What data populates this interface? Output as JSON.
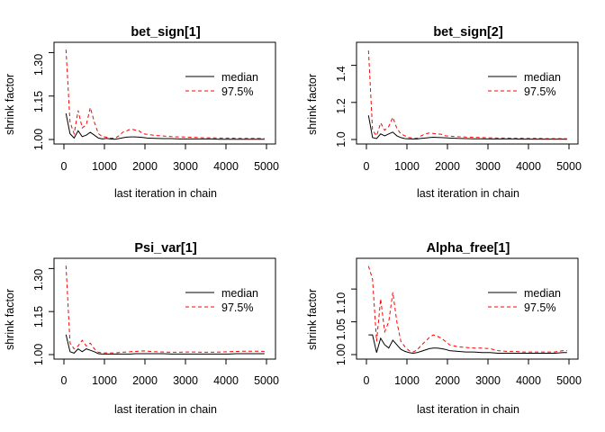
{
  "chart_data": [
    {
      "type": "line",
      "title": "bet_sign[1]",
      "xlabel": "last iteration in chain",
      "ylabel": "shrink factor",
      "xlim": [
        0,
        5000
      ],
      "ylim": [
        1.0,
        1.32
      ],
      "xticks": [
        "0",
        "1000",
        "2000",
        "3000",
        "4000",
        "5000"
      ],
      "yticks": [
        "1.00",
        "1.15",
        "1.30"
      ],
      "legend_position": "top-right",
      "grid": false,
      "series": [
        {
          "name": "median",
          "color": "#000000",
          "style": "solid",
          "x": [
            50,
            150,
            250,
            350,
            450,
            550,
            650,
            750,
            850,
            950,
            1050,
            1150,
            1250,
            1350,
            1450,
            1550,
            1650,
            1750,
            1850,
            1950,
            2050,
            2250,
            2450,
            2650,
            2850,
            3050,
            3250,
            3450,
            3650,
            3850,
            4050,
            4250,
            4450,
            4650,
            4850,
            4950
          ],
          "y": [
            1.09,
            1.02,
            1.005,
            1.03,
            1.01,
            1.015,
            1.025,
            1.015,
            1.005,
            1.002,
            1.004,
            1.002,
            1.001,
            1.003,
            1.006,
            1.008,
            1.009,
            1.009,
            1.008,
            1.007,
            1.005,
            1.004,
            1.003,
            1.003,
            1.002,
            1.002,
            1.002,
            1.002,
            1.002,
            1.001,
            1.001,
            1.001,
            1.001,
            1.001,
            1.001,
            1.001
          ]
        },
        {
          "name": "97.5%",
          "color": "#ff0000",
          "style": "dashed",
          "x": [
            50,
            150,
            250,
            350,
            450,
            550,
            650,
            750,
            850,
            950,
            1050,
            1150,
            1250,
            1350,
            1450,
            1550,
            1650,
            1750,
            1850,
            1950,
            2050,
            2250,
            2450,
            2650,
            2850,
            3050,
            3250,
            3450,
            3650,
            3850,
            4050,
            4250,
            4450,
            4650,
            4850,
            4950
          ],
          "y": [
            1.31,
            1.06,
            1.02,
            1.1,
            1.04,
            1.05,
            1.11,
            1.06,
            1.02,
            1.01,
            1.008,
            1.005,
            1.004,
            1.012,
            1.025,
            1.03,
            1.036,
            1.033,
            1.03,
            1.02,
            1.018,
            1.014,
            1.012,
            1.01,
            1.009,
            1.008,
            1.007,
            1.006,
            1.006,
            1.005,
            1.005,
            1.004,
            1.004,
            1.004,
            1.004,
            1.003
          ]
        }
      ]
    },
    {
      "type": "line",
      "title": "bet_sign[2]",
      "xlabel": "last iteration in chain",
      "ylabel": "shrink factor",
      "xlim": [
        0,
        5000
      ],
      "ylim": [
        1.0,
        1.5
      ],
      "xticks": [
        "0",
        "1000",
        "2000",
        "3000",
        "4000",
        "5000"
      ],
      "yticks": [
        "1.0",
        "1.2",
        "1.4"
      ],
      "legend_position": "top-right",
      "grid": false,
      "series": [
        {
          "name": "median",
          "color": "#000000",
          "style": "solid",
          "x": [
            50,
            150,
            250,
            350,
            450,
            550,
            650,
            750,
            850,
            950,
            1050,
            1150,
            1250,
            1350,
            1450,
            1550,
            1650,
            1750,
            1850,
            1950,
            2050,
            2250,
            2450,
            2650,
            2850,
            3050,
            3250,
            3450,
            3650,
            3850,
            4050,
            4250,
            4450,
            4650,
            4850,
            4950
          ],
          "y": [
            1.13,
            1.01,
            1.005,
            1.03,
            1.02,
            1.03,
            1.04,
            1.02,
            1.01,
            1.005,
            1.004,
            1.003,
            1.003,
            1.006,
            1.008,
            1.01,
            1.012,
            1.011,
            1.01,
            1.009,
            1.008,
            1.006,
            1.005,
            1.004,
            1.004,
            1.003,
            1.003,
            1.003,
            1.003,
            1.002,
            1.002,
            1.002,
            1.002,
            1.002,
            1.002,
            1.001
          ]
        },
        {
          "name": "97.5%",
          "color": "#ff0000",
          "style": "dashed",
          "x": [
            50,
            150,
            250,
            350,
            450,
            550,
            650,
            750,
            850,
            950,
            1050,
            1150,
            1250,
            1350,
            1450,
            1550,
            1650,
            1750,
            1850,
            1950,
            2050,
            2250,
            2450,
            2650,
            2850,
            3050,
            3250,
            3450,
            3650,
            3850,
            4050,
            4250,
            4450,
            4650,
            4850,
            4950
          ],
          "y": [
            1.48,
            1.05,
            1.02,
            1.09,
            1.05,
            1.07,
            1.12,
            1.06,
            1.03,
            1.02,
            1.01,
            1.008,
            1.007,
            1.02,
            1.03,
            1.035,
            1.033,
            1.03,
            1.028,
            1.02,
            1.018,
            1.015,
            1.013,
            1.012,
            1.01,
            1.009,
            1.008,
            1.008,
            1.007,
            1.007,
            1.006,
            1.006,
            1.005,
            1.005,
            1.005,
            1.004
          ]
        }
      ]
    },
    {
      "type": "line",
      "title": "Psi_var[1]",
      "xlabel": "last iteration in chain",
      "ylabel": "shrink factor",
      "xlim": [
        0,
        5000
      ],
      "ylim": [
        1.0,
        1.32
      ],
      "xticks": [
        "0",
        "1000",
        "2000",
        "3000",
        "4000",
        "5000"
      ],
      "yticks": [
        "1.00",
        "1.15",
        "1.30"
      ],
      "legend_position": "top-right",
      "grid": false,
      "series": [
        {
          "name": "median",
          "color": "#000000",
          "style": "solid",
          "x": [
            50,
            150,
            250,
            350,
            450,
            550,
            650,
            750,
            850,
            950,
            1050,
            1150,
            1250,
            1350,
            1450,
            1550,
            1650,
            1750,
            1850,
            1950,
            2050,
            2250,
            2450,
            2650,
            2850,
            3050,
            3250,
            3450,
            3650,
            3850,
            4050,
            4250,
            4450,
            4650,
            4850,
            4950
          ],
          "y": [
            1.07,
            1.01,
            1.005,
            1.02,
            1.01,
            1.02,
            1.015,
            1.01,
            1.003,
            1.002,
            1.002,
            1.002,
            1.002,
            1.002,
            1.002,
            1.002,
            1.002,
            1.003,
            1.003,
            1.003,
            1.003,
            1.003,
            1.003,
            1.002,
            1.002,
            1.002,
            1.002,
            1.002,
            1.002,
            1.002,
            1.002,
            1.003,
            1.003,
            1.003,
            1.003,
            1.003
          ]
        },
        {
          "name": "97.5%",
          "color": "#ff0000",
          "style": "dashed",
          "x": [
            50,
            150,
            250,
            350,
            450,
            550,
            650,
            750,
            850,
            950,
            1050,
            1150,
            1250,
            1350,
            1450,
            1550,
            1650,
            1750,
            1850,
            1950,
            2050,
            2250,
            2450,
            2650,
            2850,
            3050,
            3250,
            3450,
            3650,
            3850,
            4050,
            4250,
            4450,
            4650,
            4850,
            4950
          ],
          "y": [
            1.31,
            1.04,
            1.02,
            1.03,
            1.05,
            1.03,
            1.04,
            1.02,
            1.008,
            1.006,
            1.006,
            1.006,
            1.006,
            1.007,
            1.008,
            1.009,
            1.01,
            1.011,
            1.012,
            1.013,
            1.012,
            1.01,
            1.009,
            1.008,
            1.008,
            1.009,
            1.009,
            1.008,
            1.008,
            1.009,
            1.01,
            1.011,
            1.012,
            1.012,
            1.012,
            1.011
          ]
        }
      ]
    },
    {
      "type": "line",
      "title": "Alpha_free[1]",
      "xlabel": "last iteration in chain",
      "ylabel": "shrink factor",
      "xlim": [
        0,
        5000
      ],
      "ylim": [
        1.0,
        1.14
      ],
      "xticks": [
        "0",
        "1000",
        "2000",
        "3000",
        "4000",
        "5000"
      ],
      "yticks": [
        "1.00",
        "1.05",
        "1.10"
      ],
      "legend_position": "top-right",
      "grid": false,
      "series": [
        {
          "name": "median",
          "color": "#000000",
          "style": "solid",
          "x": [
            50,
            150,
            250,
            350,
            450,
            550,
            650,
            750,
            850,
            950,
            1050,
            1150,
            1250,
            1350,
            1450,
            1550,
            1650,
            1750,
            1850,
            1950,
            2050,
            2250,
            2450,
            2650,
            2850,
            3050,
            3250,
            3450,
            3650,
            3850,
            4050,
            4250,
            4450,
            4650,
            4850,
            4950
          ],
          "y": [
            1.03,
            1.03,
            1.003,
            1.025,
            1.015,
            1.01,
            1.022,
            1.015,
            1.008,
            1.005,
            1.003,
            1.002,
            1.003,
            1.005,
            1.007,
            1.009,
            1.01,
            1.01,
            1.009,
            1.008,
            1.006,
            1.005,
            1.004,
            1.004,
            1.003,
            1.003,
            1.002,
            1.002,
            1.002,
            1.002,
            1.002,
            1.002,
            1.002,
            1.002,
            1.003,
            1.003
          ]
        },
        {
          "name": "97.5%",
          "color": "#ff0000",
          "style": "dashed",
          "x": [
            50,
            150,
            250,
            350,
            450,
            550,
            650,
            750,
            850,
            950,
            1050,
            1150,
            1250,
            1350,
            1450,
            1550,
            1650,
            1750,
            1850,
            1950,
            2050,
            2250,
            2450,
            2650,
            2850,
            3050,
            3250,
            3450,
            3650,
            3850,
            4050,
            4250,
            4450,
            4650,
            4850,
            4950
          ],
          "y": [
            1.135,
            1.115,
            1.02,
            1.085,
            1.035,
            1.05,
            1.095,
            1.05,
            1.02,
            1.012,
            1.006,
            1.004,
            1.007,
            1.014,
            1.02,
            1.026,
            1.03,
            1.028,
            1.025,
            1.02,
            1.015,
            1.012,
            1.011,
            1.01,
            1.01,
            1.009,
            1.006,
            1.005,
            1.005,
            1.004,
            1.004,
            1.004,
            1.004,
            1.004,
            1.006,
            1.006
          ]
        }
      ]
    }
  ]
}
